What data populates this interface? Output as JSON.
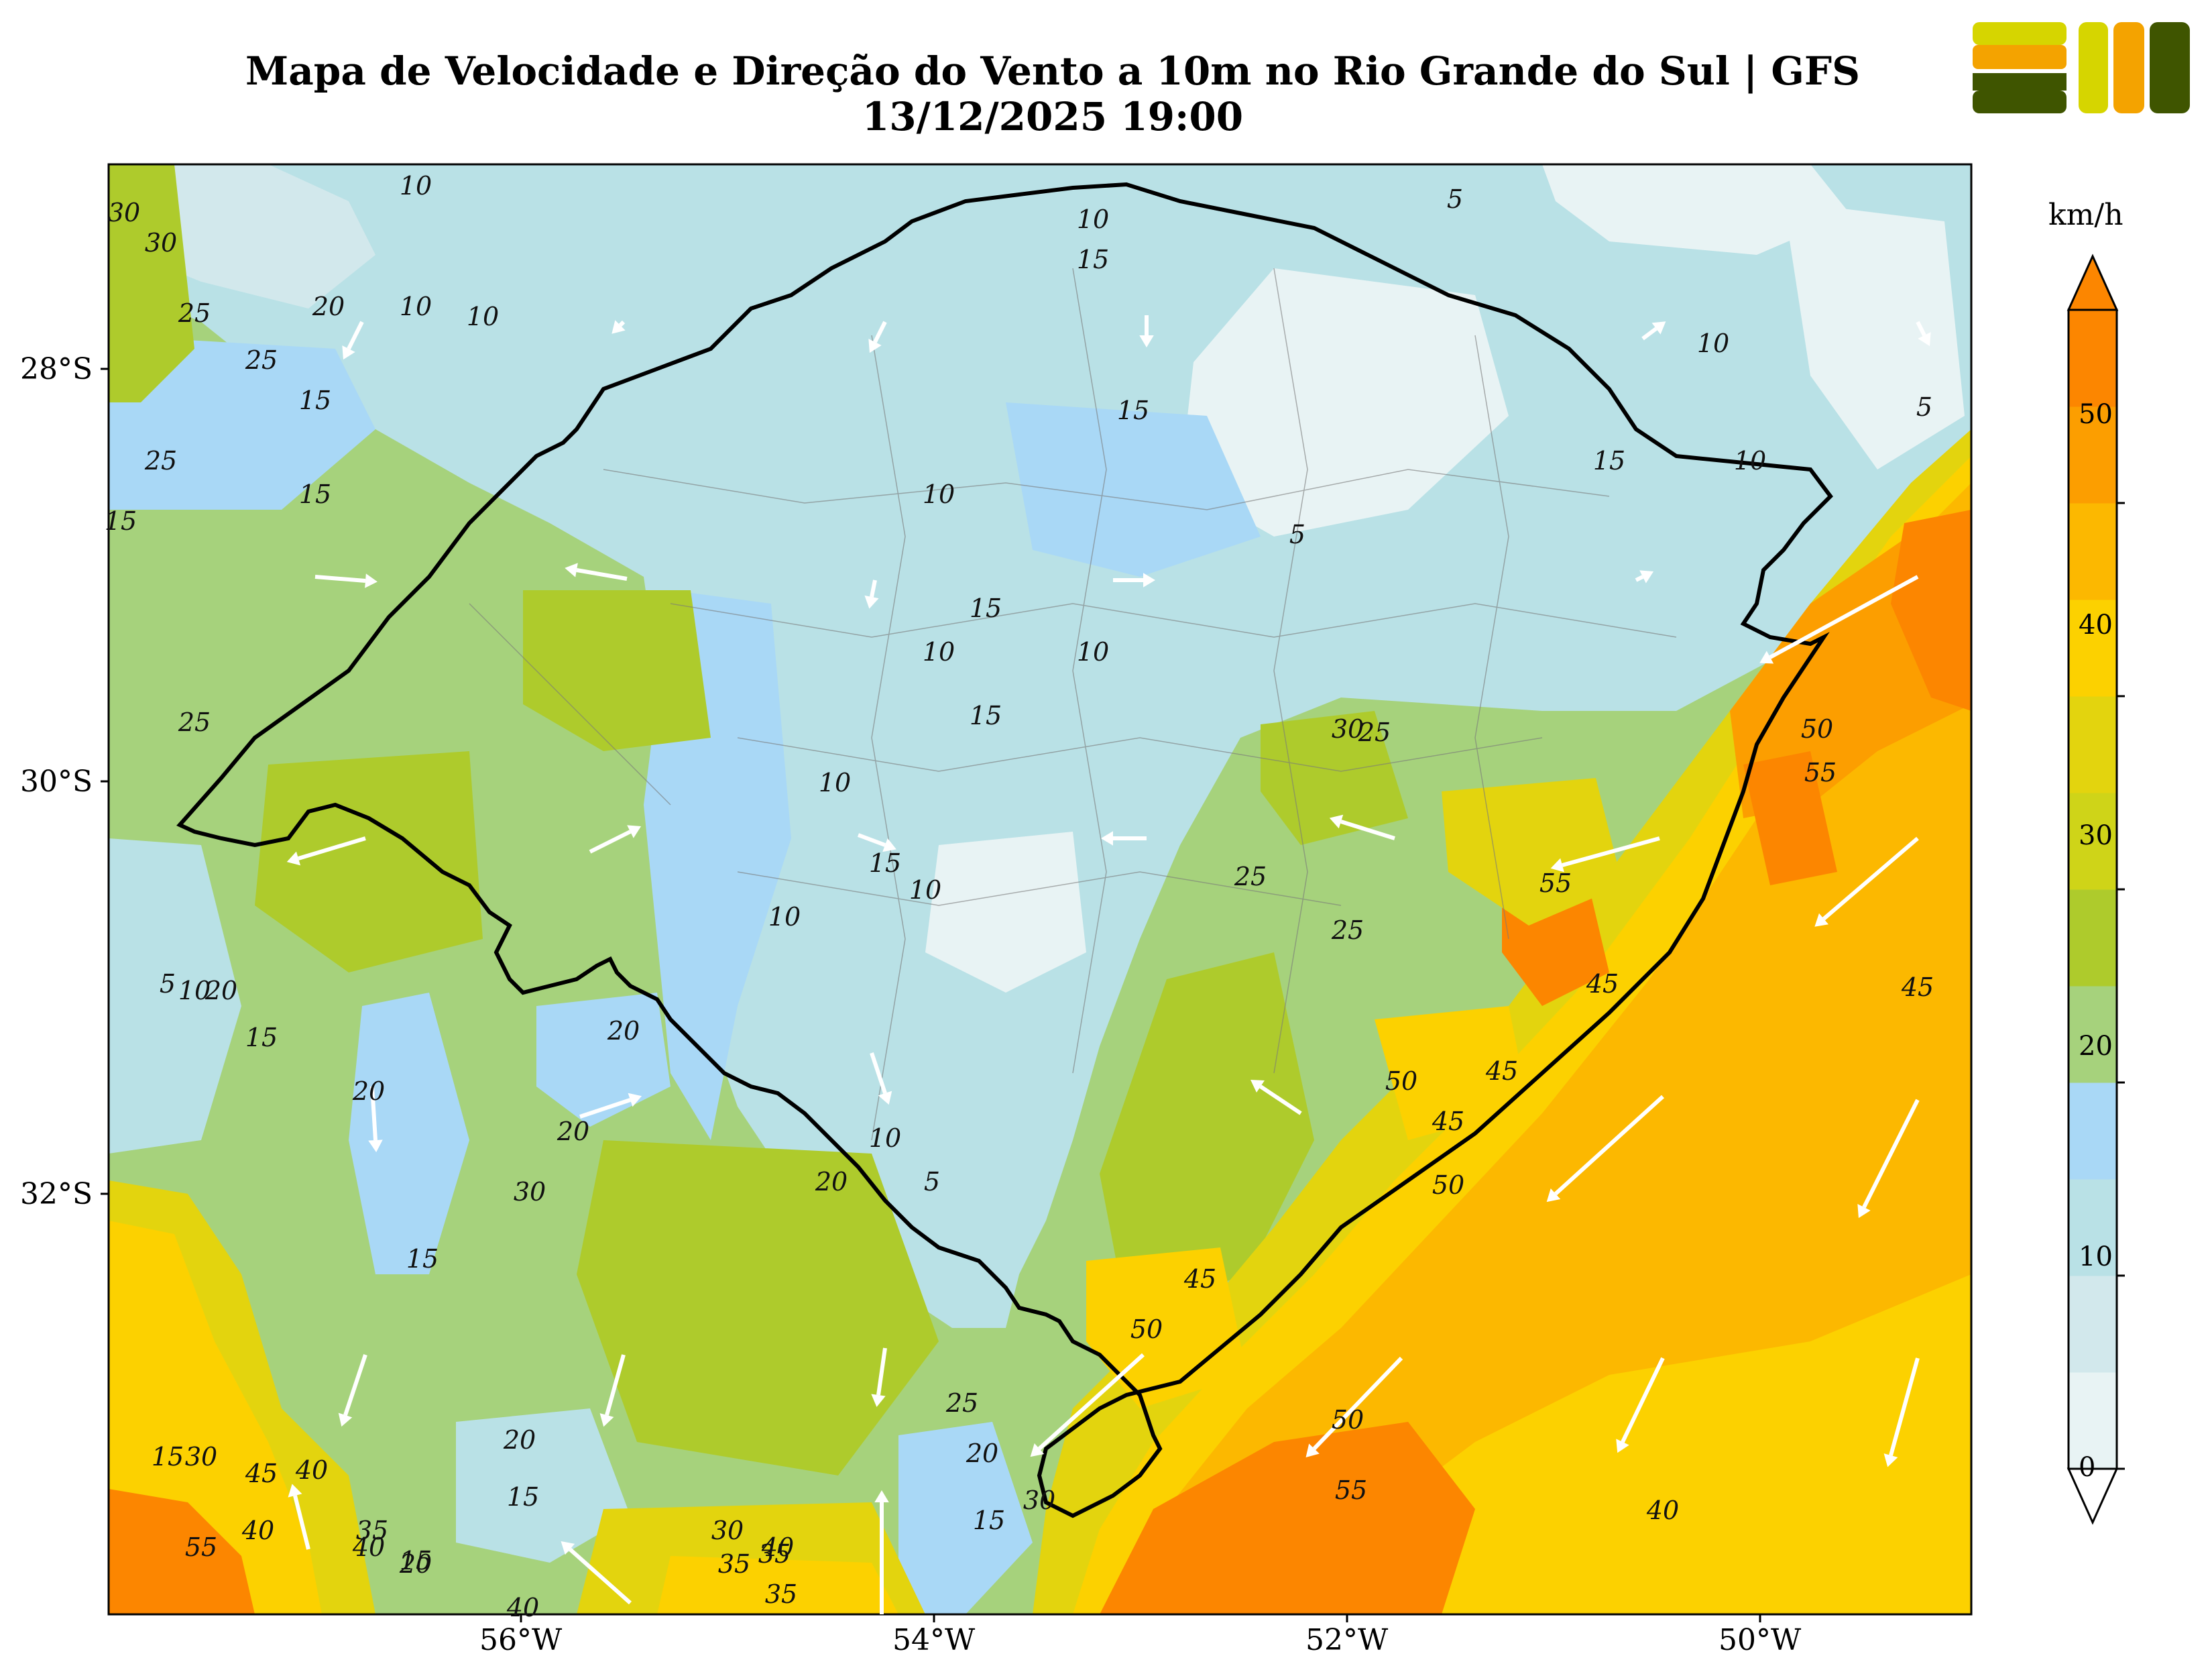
{
  "title_line1": "Mapa de Velocidade e Direção do Vento a 10m no Rio Grande do Sul | GFS",
  "title_line2": "13/12/2025 19:00",
  "logo_icon": "company-logo-icon",
  "colorbar": {
    "unit": "km/h",
    "ticks": [
      "0",
      "10",
      "20",
      "30",
      "40",
      "50"
    ],
    "colors": [
      "#e8f3f4",
      "#d2e8ec",
      "#b9e1e6",
      "#a9d8f6",
      "#a6d27c",
      "#aecb2c",
      "#cfd418",
      "#e3d40e",
      "#fcd100",
      "#fcb800",
      "#fc9e00",
      "#fc8600"
    ]
  },
  "axes": {
    "lat_labels": [
      "28°S",
      "30°S",
      "32°S"
    ],
    "lon_labels": [
      "56°W",
      "54°W",
      "52°W",
      "50°W"
    ]
  },
  "contour_labels": [
    "10",
    "10",
    "5",
    "10",
    "10",
    "15",
    "30",
    "30",
    "25",
    "25",
    "20",
    "15",
    "15",
    "10",
    "15",
    "25",
    "15",
    "5",
    "10",
    "15",
    "15",
    "10",
    "10",
    "5",
    "10",
    "25",
    "15",
    "10",
    "25",
    "30",
    "25",
    "25",
    "10",
    "15",
    "10",
    "55",
    "50",
    "55",
    "10",
    "5",
    "20",
    "15",
    "20",
    "20",
    "20",
    "45",
    "50",
    "45",
    "45",
    "50",
    "30",
    "10",
    "15",
    "20",
    "5",
    "45",
    "50",
    "25",
    "20",
    "30",
    "30",
    "50",
    "40",
    "35",
    "40",
    "35",
    "20",
    "15",
    "15",
    "15",
    "30",
    "35",
    "40",
    "35",
    "55",
    "40",
    "20",
    "15",
    "45",
    "55",
    "40",
    "45",
    "40"
  ]
}
